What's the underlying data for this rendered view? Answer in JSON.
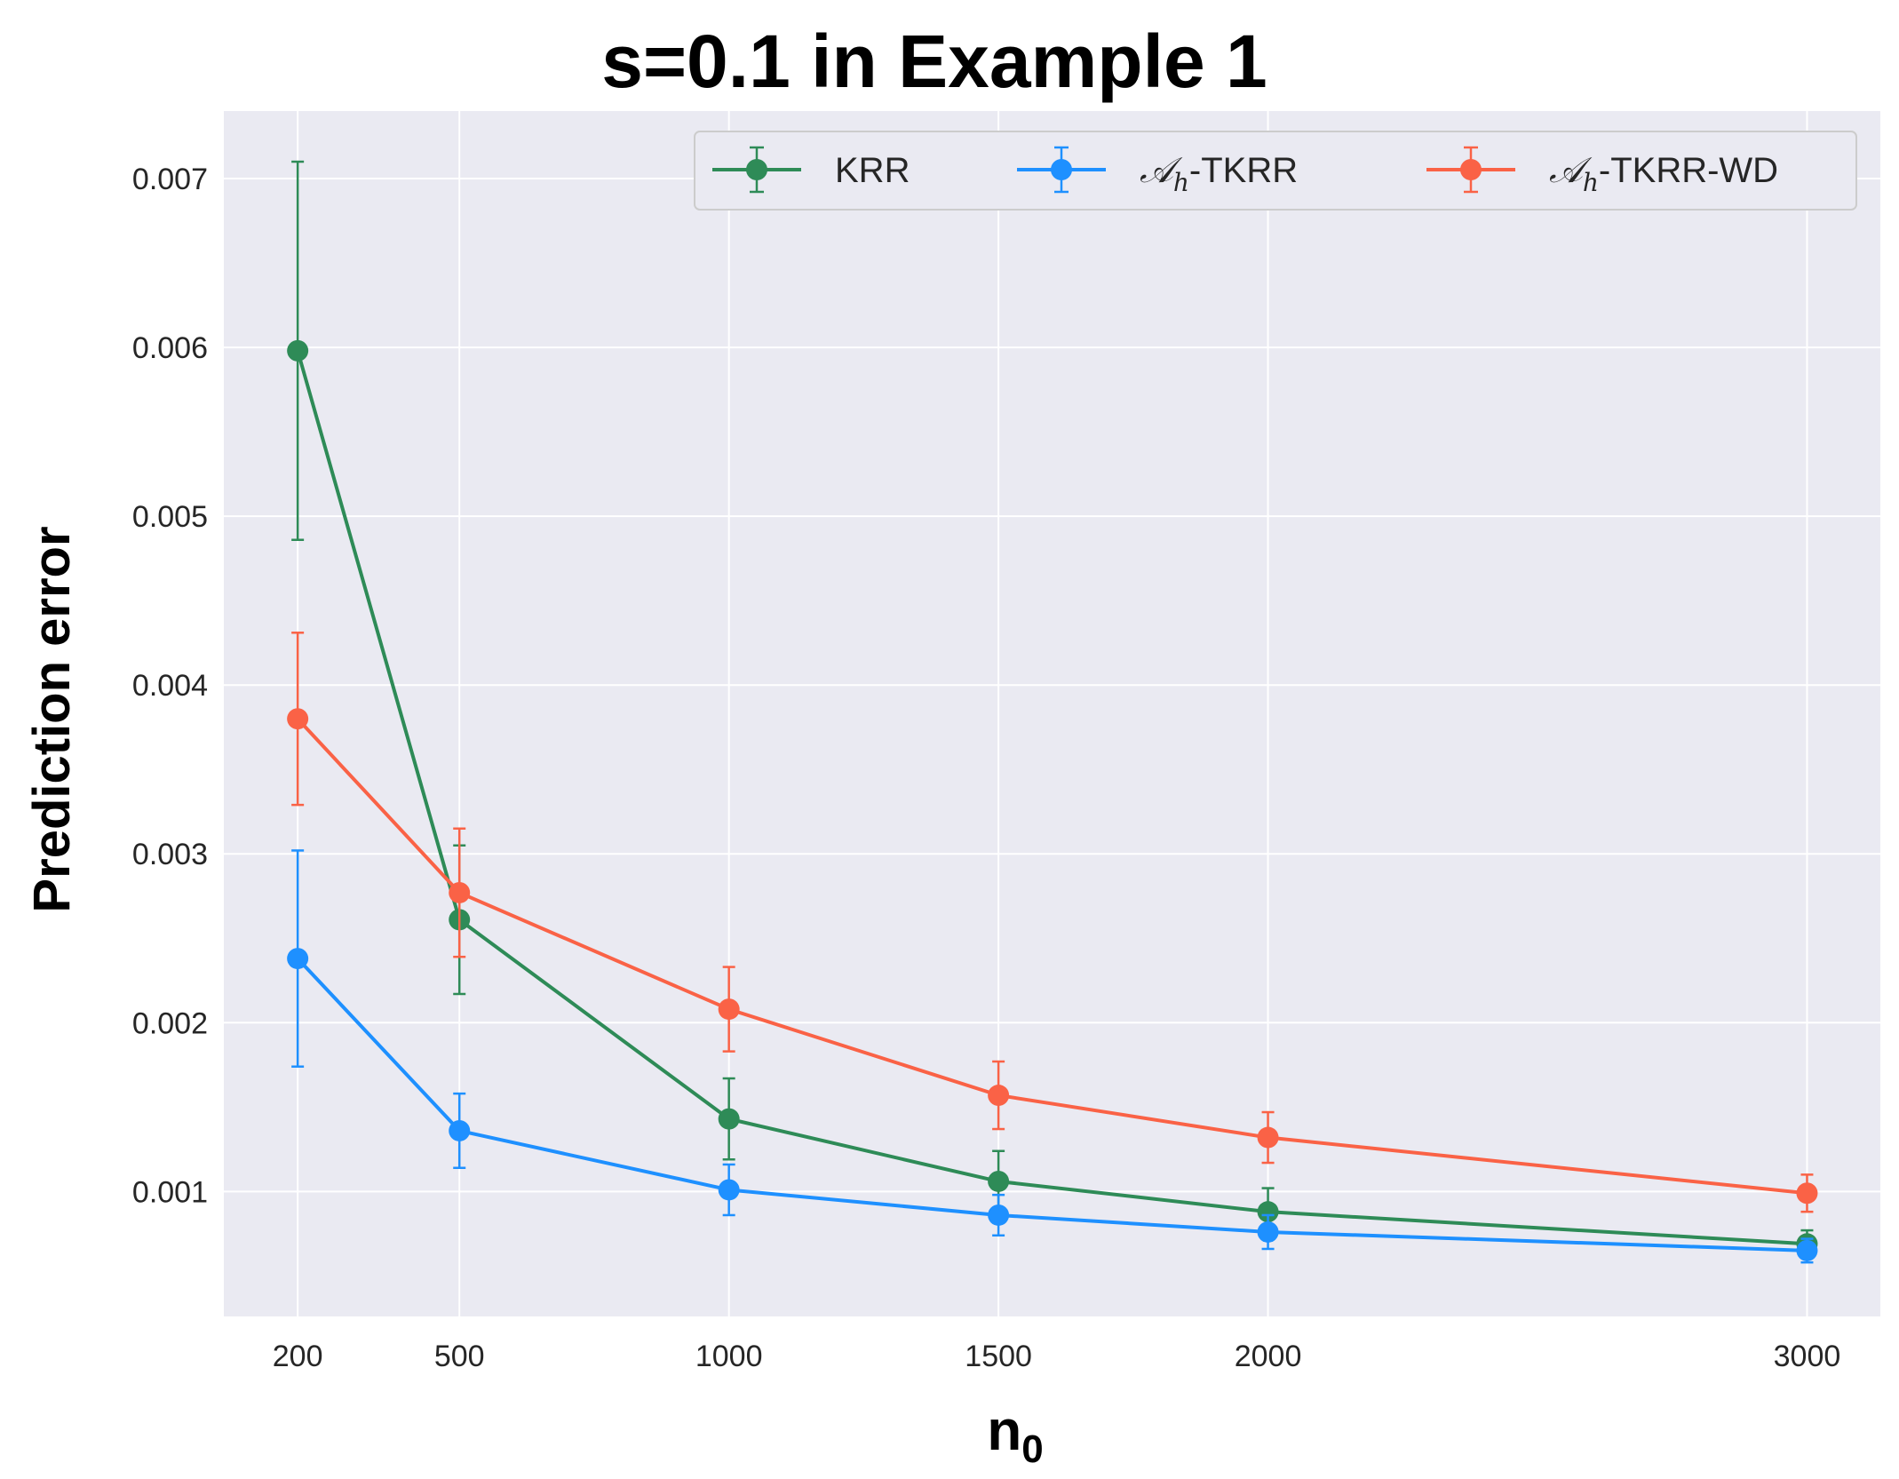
{
  "chart_data": {
    "type": "line",
    "title": "s=0.1 in Example 1",
    "xlabel": "n",
    "xlabel_sub": "0",
    "ylabel": "Prediction error",
    "x": [
      200,
      500,
      1000,
      1500,
      2000,
      3000
    ],
    "x_ticks": [
      "200",
      "500",
      "1000",
      "1500",
      "2000",
      "3000"
    ],
    "y_ticks": [
      "0.001",
      "0.002",
      "0.003",
      "0.004",
      "0.005",
      "0.006",
      "0.007"
    ],
    "xlim": [
      63,
      3136
    ],
    "ylim": [
      0.00026,
      0.0074
    ],
    "grid": true,
    "legend_position": "top-right",
    "series": [
      {
        "name": "KRR",
        "color": "#2e8b57",
        "values": [
          0.00598,
          0.00261,
          0.00143,
          0.00106,
          0.00088,
          0.00069
        ],
        "errors": [
          0.00112,
          0.00044,
          0.00024,
          0.00018,
          0.00014,
          8e-05
        ]
      },
      {
        "name": "𝒜h-TKRR",
        "label_script": "𝒜",
        "label_sub": "h",
        "label_rest": "-TKRR",
        "color": "#1e90ff",
        "values": [
          0.00238,
          0.00136,
          0.00101,
          0.00086,
          0.00076,
          0.00065
        ],
        "errors": [
          0.00064,
          0.00022,
          0.00015,
          0.00012,
          0.0001,
          7e-05
        ]
      },
      {
        "name": "𝒜h-TKRR-WD",
        "label_script": "𝒜",
        "label_sub": "h",
        "label_rest": "-TKRR-WD",
        "color": "#fa6246",
        "values": [
          0.0038,
          0.00277,
          0.00208,
          0.00157,
          0.00132,
          0.00099
        ],
        "errors": [
          0.00051,
          0.00038,
          0.00025,
          0.0002,
          0.00015,
          0.00011
        ]
      }
    ]
  }
}
